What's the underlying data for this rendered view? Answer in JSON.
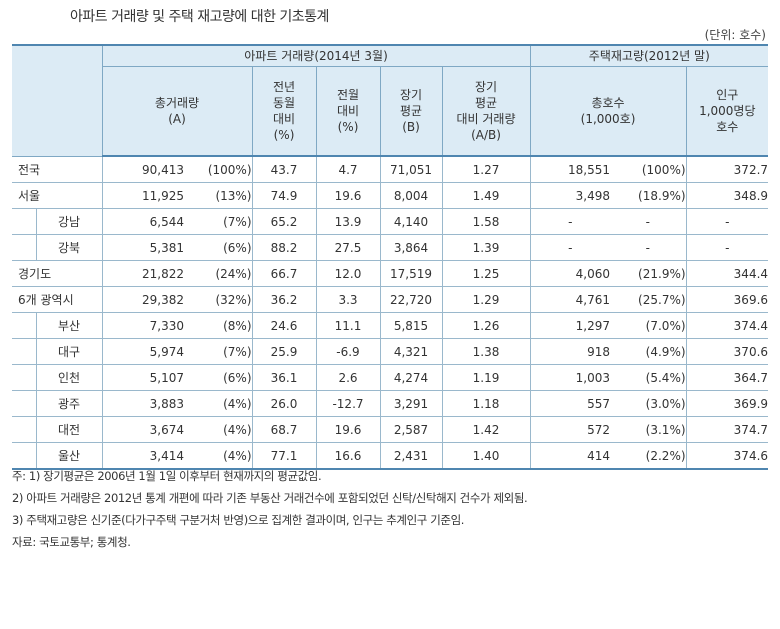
{
  "title": "아파트 거래량 및 주택 재고량에 대한 기초통계",
  "unit": "(단위: 호수)",
  "headers": {
    "group_apt": "아파트 거래량(2014년 3월)",
    "group_housing": "주택재고량(2012년 말)",
    "total_trade": [
      "총거래량",
      "(A)"
    ],
    "yoy": [
      "전년",
      "동월",
      "대비",
      "(%)"
    ],
    "mom": [
      "전월",
      "대비",
      "(%)"
    ],
    "longavg": [
      "장기",
      "평균",
      "(B)"
    ],
    "ratio": [
      "장기",
      "평균",
      "대비 거래량",
      "(A/B)"
    ],
    "total_houses": [
      "총호수",
      "(1,000호)"
    ],
    "per_1000": [
      "인구",
      "1,000명당",
      "호수"
    ]
  },
  "rows": [
    {
      "region": "전국",
      "level": 0,
      "total": "90,413",
      "total_pct": "(100%)",
      "yoy": "43.7",
      "mom": "4.7",
      "longavg": "71,051",
      "ratio": "1.27",
      "houses": "18,551",
      "houses_pct": "(100%)",
      "per1000": "372.7"
    },
    {
      "region": "서울",
      "level": 0,
      "total": "11,925",
      "total_pct": "(13%)",
      "yoy": "74.9",
      "mom": "19.6",
      "longavg": "8,004",
      "ratio": "1.49",
      "houses": "3,498",
      "houses_pct": "(18.9%)",
      "per1000": "348.9"
    },
    {
      "region": "강남",
      "level": 1,
      "total": "6,544",
      "total_pct": "(7%)",
      "yoy": "65.2",
      "mom": "13.9",
      "longavg": "4,140",
      "ratio": "1.58",
      "houses": "-",
      "houses_pct": "-",
      "per1000": "-"
    },
    {
      "region": "강북",
      "level": 1,
      "total": "5,381",
      "total_pct": "(6%)",
      "yoy": "88.2",
      "mom": "27.5",
      "longavg": "3,864",
      "ratio": "1.39",
      "houses": "-",
      "houses_pct": "-",
      "per1000": "-"
    },
    {
      "region": "경기도",
      "level": 0,
      "total": "21,822",
      "total_pct": "(24%)",
      "yoy": "66.7",
      "mom": "12.0",
      "longavg": "17,519",
      "ratio": "1.25",
      "houses": "4,060",
      "houses_pct": "(21.9%)",
      "per1000": "344.4"
    },
    {
      "region": "6개 광역시",
      "level": 0,
      "total": "29,382",
      "total_pct": "(32%)",
      "yoy": "36.2",
      "mom": "3.3",
      "longavg": "22,720",
      "ratio": "1.29",
      "houses": "4,761",
      "houses_pct": "(25.7%)",
      "per1000": "369.6"
    },
    {
      "region": "부산",
      "level": 1,
      "total": "7,330",
      "total_pct": "(8%)",
      "yoy": "24.6",
      "mom": "11.1",
      "longavg": "5,815",
      "ratio": "1.26",
      "houses": "1,297",
      "houses_pct": "(7.0%)",
      "per1000": "374.4"
    },
    {
      "region": "대구",
      "level": 1,
      "total": "5,974",
      "total_pct": "(7%)",
      "yoy": "25.9",
      "mom": "-6.9",
      "longavg": "4,321",
      "ratio": "1.38",
      "houses": "918",
      "houses_pct": "(4.9%)",
      "per1000": "370.6"
    },
    {
      "region": "인천",
      "level": 1,
      "total": "5,107",
      "total_pct": "(6%)",
      "yoy": "36.1",
      "mom": "2.6",
      "longavg": "4,274",
      "ratio": "1.19",
      "houses": "1,003",
      "houses_pct": "(5.4%)",
      "per1000": "364.7"
    },
    {
      "region": "광주",
      "level": 1,
      "total": "3,883",
      "total_pct": "(4%)",
      "yoy": "26.0",
      "mom": "-12.7",
      "longavg": "3,291",
      "ratio": "1.18",
      "houses": "557",
      "houses_pct": "(3.0%)",
      "per1000": "369.9"
    },
    {
      "region": "대전",
      "level": 1,
      "total": "3,674",
      "total_pct": "(4%)",
      "yoy": "68.7",
      "mom": "19.6",
      "longavg": "2,587",
      "ratio": "1.42",
      "houses": "572",
      "houses_pct": "(3.1%)",
      "per1000": "374.7"
    },
    {
      "region": "울산",
      "level": 1,
      "total": "3,414",
      "total_pct": "(4%)",
      "yoy": "77.1",
      "mom": "16.6",
      "longavg": "2,431",
      "ratio": "1.40",
      "houses": "414",
      "houses_pct": "(2.2%)",
      "per1000": "374.6"
    }
  ],
  "notes": [
    "주:  1) 장기평균은 2006년 1월 1일 이후부터 현재까지의 평균값임.",
    "      2) 아파트 거래량은 2012년 통계 개편에 따라 기존 부동산 거래건수에 포함되었던 신탁/신탁해지 건수가 제외됨.",
    "      3) 주택재고량은 신기준(다가구주택 구분거처 반영)으로 집계한 결과이며, 인구는 추계인구 기준임.",
    "자료: 국토교통부; 통계청."
  ]
}
